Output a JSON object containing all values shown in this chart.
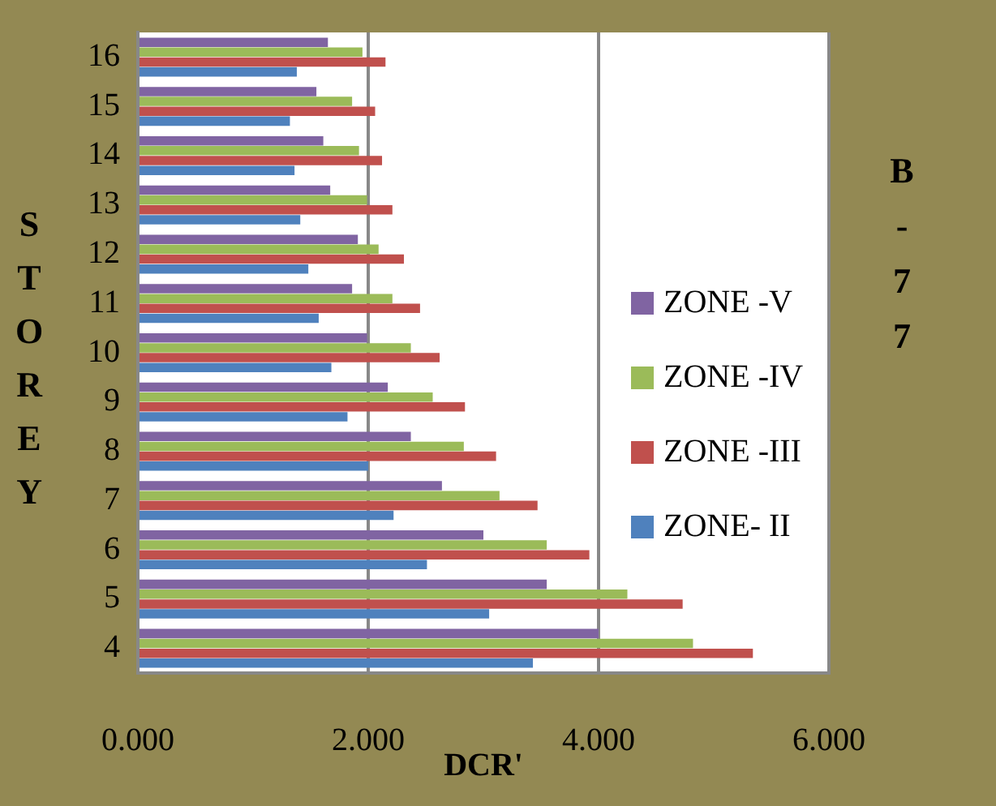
{
  "chart_data": {
    "type": "bar",
    "orientation": "horizontal",
    "title": "B-77",
    "xlabel": "DCR'",
    "ylabel": "STOREY",
    "categories": [
      "16",
      "15",
      "14",
      "13",
      "12",
      "11",
      "10",
      "9",
      "8",
      "7",
      "6",
      "5",
      "4"
    ],
    "series": [
      {
        "name": "ZONE -V",
        "color": "#8064a2",
        "values": [
          1.65,
          1.55,
          1.61,
          1.67,
          1.91,
          1.86,
          1.99,
          2.17,
          2.37,
          2.64,
          3.0,
          3.55,
          4.0
        ]
      },
      {
        "name": "ZONE -IV",
        "color": "#9bbb59",
        "values": [
          1.95,
          1.86,
          1.92,
          1.99,
          2.09,
          2.21,
          2.37,
          2.56,
          2.83,
          3.14,
          3.55,
          4.25,
          4.82
        ]
      },
      {
        "name": "ZONE -III",
        "color": "#c0504d",
        "values": [
          2.15,
          2.06,
          2.12,
          2.21,
          2.31,
          2.45,
          2.62,
          2.84,
          3.11,
          3.47,
          3.92,
          4.73,
          5.34
        ]
      },
      {
        "name": "ZONE- II",
        "color": "#4f81bd",
        "values": [
          1.38,
          1.32,
          1.36,
          1.41,
          1.48,
          1.57,
          1.68,
          1.82,
          2.0,
          2.22,
          2.51,
          3.05,
          3.43
        ]
      }
    ],
    "xlim": [
      0,
      6
    ],
    "xticks": [
      {
        "value": 0,
        "label": "0.000"
      },
      {
        "value": 2,
        "label": "2.000"
      },
      {
        "value": 4,
        "label": "4.000"
      },
      {
        "value": 6,
        "label": "6.000"
      }
    ],
    "grid": "x",
    "legend": "right"
  }
}
